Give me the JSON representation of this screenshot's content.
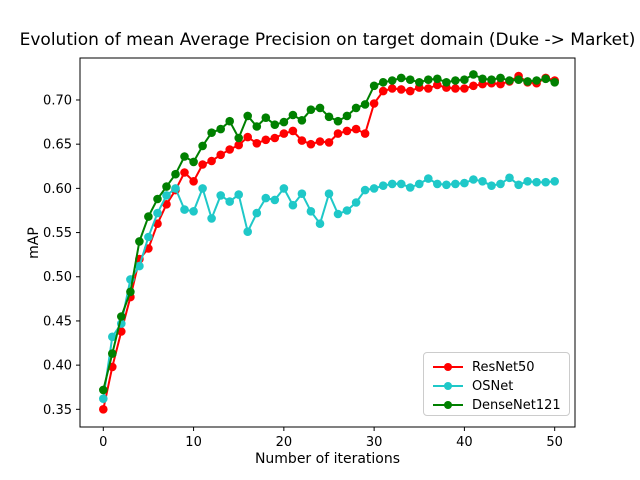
{
  "chart_data": {
    "type": "line",
    "title": "Evolution of mean Average Precision on target domain (Duke -> Market)",
    "xlabel": "Number of iterations",
    "ylabel": "mAP",
    "xlim": [
      -2.58,
      52.25
    ],
    "ylim": [
      0.33,
      0.7475
    ],
    "xticks": [
      0,
      10,
      20,
      30,
      40,
      50
    ],
    "yticks": [
      0.35,
      0.4,
      0.45,
      0.5,
      0.55,
      0.6,
      0.65,
      0.7
    ],
    "grid": false,
    "legend_position": "lower right",
    "marker": "o",
    "x": [
      0,
      1,
      2,
      3,
      4,
      5,
      6,
      7,
      8,
      9,
      10,
      11,
      12,
      13,
      14,
      15,
      16,
      17,
      18,
      19,
      20,
      21,
      22,
      23,
      24,
      25,
      26,
      27,
      28,
      29,
      30,
      31,
      32,
      33,
      34,
      35,
      36,
      37,
      38,
      39,
      40,
      41,
      42,
      43,
      44,
      45,
      46,
      47,
      48,
      49,
      50
    ],
    "series": [
      {
        "name": "ResNet50",
        "color": "#ff0000",
        "values": [
          0.35,
          0.398,
          0.438,
          0.477,
          0.52,
          0.532,
          0.56,
          0.582,
          0.598,
          0.618,
          0.608,
          0.627,
          0.631,
          0.638,
          0.644,
          0.649,
          0.658,
          0.651,
          0.655,
          0.657,
          0.662,
          0.665,
          0.654,
          0.65,
          0.653,
          0.652,
          0.662,
          0.665,
          0.667,
          0.662,
          0.696,
          0.71,
          0.713,
          0.712,
          0.71,
          0.714,
          0.713,
          0.717,
          0.714,
          0.713,
          0.713,
          0.716,
          0.718,
          0.719,
          0.718,
          0.721,
          0.727,
          0.72,
          0.719,
          0.725,
          0.722
        ]
      },
      {
        "name": "OSNet",
        "color": "#1fc8c8",
        "values": [
          0.362,
          0.432,
          0.447,
          0.497,
          0.512,
          0.545,
          0.572,
          0.592,
          0.6,
          0.576,
          0.574,
          0.6,
          0.566,
          0.592,
          0.585,
          0.593,
          0.551,
          0.572,
          0.589,
          0.587,
          0.6,
          0.581,
          0.594,
          0.574,
          0.56,
          0.594,
          0.571,
          0.575,
          0.584,
          0.598,
          0.6,
          0.603,
          0.605,
          0.605,
          0.601,
          0.605,
          0.611,
          0.605,
          0.604,
          0.605,
          0.606,
          0.61,
          0.608,
          0.603,
          0.605,
          0.612,
          0.604,
          0.608,
          0.607,
          0.607,
          0.608
        ]
      },
      {
        "name": "DenseNet121",
        "color": "#008000",
        "values": [
          0.372,
          0.413,
          0.455,
          0.483,
          0.54,
          0.568,
          0.588,
          0.602,
          0.616,
          0.636,
          0.63,
          0.648,
          0.663,
          0.667,
          0.676,
          0.657,
          0.682,
          0.67,
          0.68,
          0.672,
          0.675,
          0.683,
          0.677,
          0.689,
          0.691,
          0.681,
          0.676,
          0.682,
          0.691,
          0.695,
          0.716,
          0.72,
          0.722,
          0.725,
          0.723,
          0.72,
          0.723,
          0.724,
          0.72,
          0.722,
          0.723,
          0.729,
          0.724,
          0.723,
          0.725,
          0.722,
          0.723,
          0.721,
          0.722,
          0.724,
          0.72
        ]
      }
    ]
  }
}
